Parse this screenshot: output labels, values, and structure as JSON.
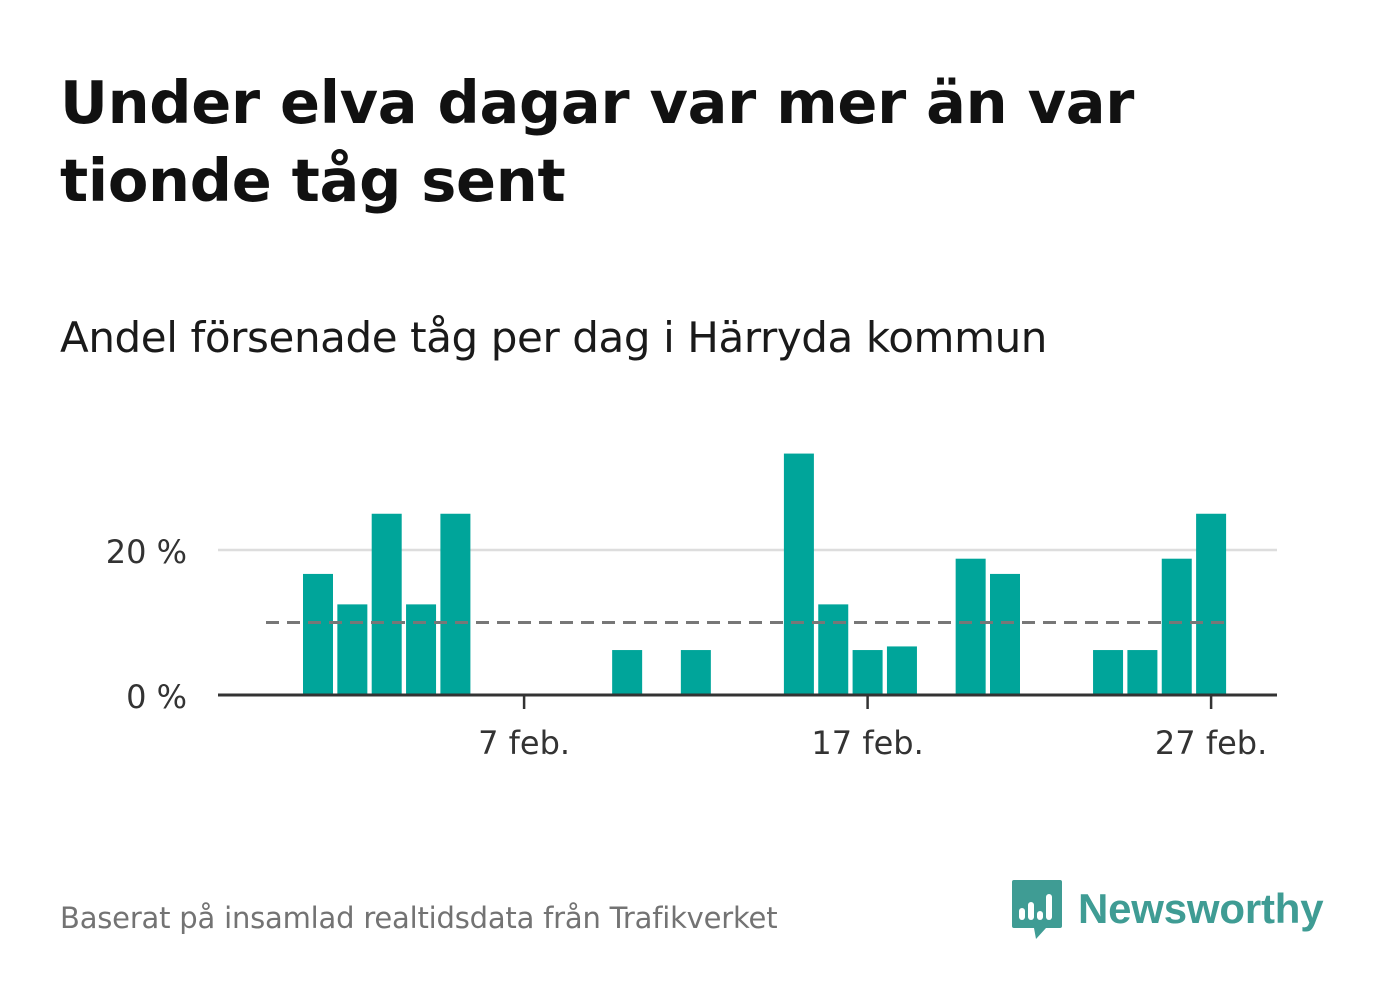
{
  "header": {
    "title": "Under elva dagar var mer än var tionde tåg sent",
    "subtitle": "Andel försenade tåg per dag i Härryda kommun"
  },
  "footer": {
    "source": "Baserat på insamlad realtidsdata från Trafikverket",
    "brand": "Newsworthy",
    "brand_icon": "bar-chart-speech-bubble-icon"
  },
  "colors": {
    "bar": "#00a59a",
    "reference_line": "#777777",
    "grid": "#dddddd",
    "axis": "#333333",
    "brand": "#3f9c94"
  },
  "chart_data": {
    "type": "bar",
    "x": [
      "2023-02-01",
      "2023-02-02",
      "2023-02-03",
      "2023-02-04",
      "2023-02-05",
      "2023-02-06",
      "2023-02-07",
      "2023-02-08",
      "2023-02-09",
      "2023-02-10",
      "2023-02-11",
      "2023-02-12",
      "2023-02-13",
      "2023-02-14",
      "2023-02-15",
      "2023-02-16",
      "2023-02-17",
      "2023-02-18",
      "2023-02-19",
      "2023-02-20",
      "2023-02-21",
      "2023-02-22",
      "2023-02-23",
      "2023-02-24",
      "2023-02-25",
      "2023-02-26",
      "2023-02-27",
      "2023-02-28"
    ],
    "values": [
      16.7,
      12.5,
      25.0,
      12.5,
      25.0,
      0,
      0,
      0,
      0,
      6.2,
      0,
      6.2,
      0,
      0,
      33.3,
      12.5,
      6.2,
      6.7,
      0,
      18.8,
      16.7,
      0,
      0,
      6.2,
      6.2,
      18.8,
      25.0,
      0
    ],
    "reference_line": 10,
    "x_ticks": [
      {
        "x": "2023-02-07",
        "label": "7 feb."
      },
      {
        "x": "2023-02-17",
        "label": "17 feb."
      },
      {
        "x": "2023-02-27",
        "label": "27 feb."
      }
    ],
    "y_ticks": [
      {
        "value": 0,
        "label": "0 %"
      },
      {
        "value": 20,
        "label": "20 %"
      }
    ],
    "ylim": [
      0,
      36
    ],
    "grid": true,
    "legend": "none"
  }
}
